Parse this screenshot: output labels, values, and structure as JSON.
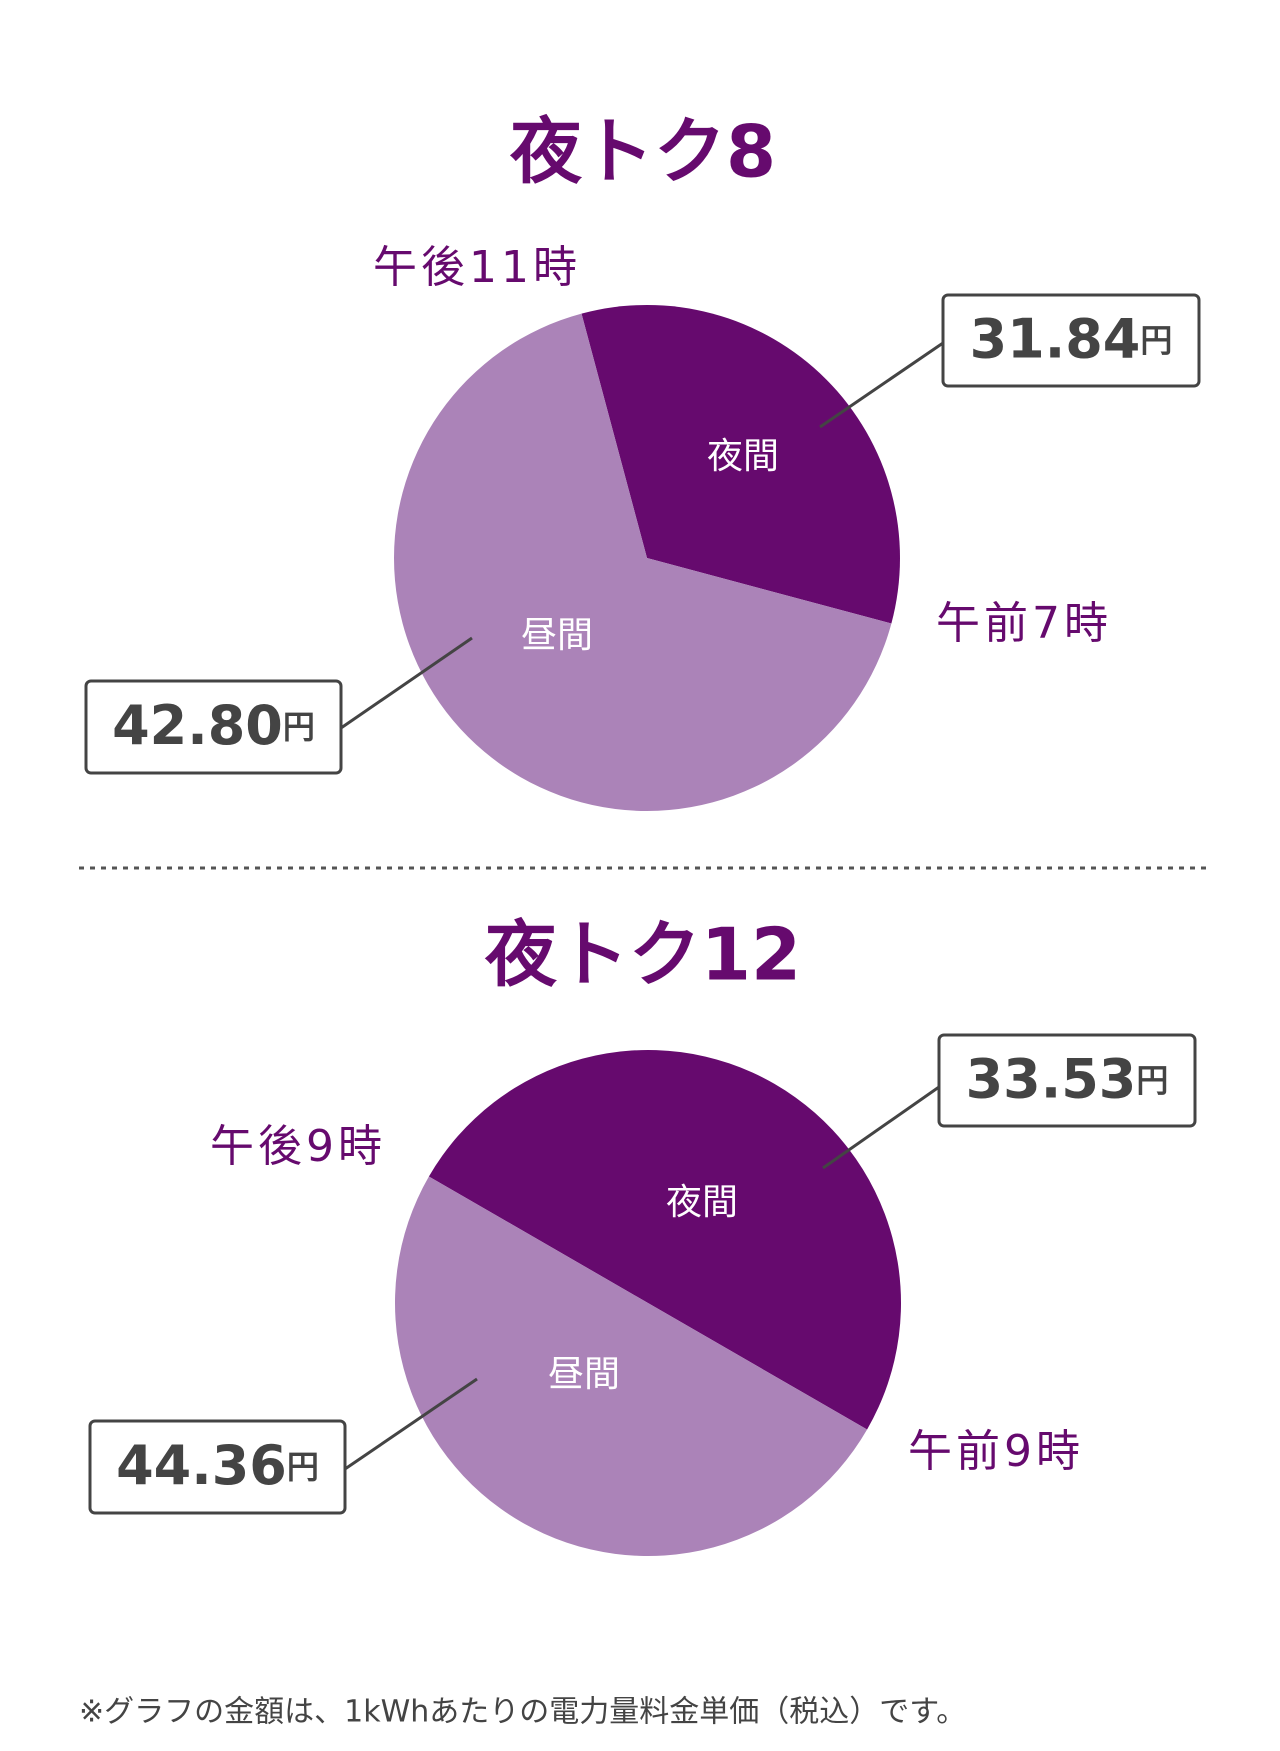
{
  "chart_data": [
    {
      "type": "pie",
      "title": "夜トク8",
      "categories": [
        "夜間",
        "昼間"
      ],
      "values": [
        8,
        16
      ],
      "colors": [
        "#660a6e",
        "#ab83b8"
      ],
      "start_angle": -15,
      "boundary_labels": [
        "午後11時",
        "午前7時"
      ],
      "prices": [
        "31.84",
        "42.80"
      ],
      "price_unit": "円"
    },
    {
      "type": "pie",
      "title": "夜トク12",
      "categories": [
        "夜間",
        "昼間"
      ],
      "values": [
        12,
        12
      ],
      "colors": [
        "#660a6e",
        "#ab83b8"
      ],
      "start_angle": -60,
      "boundary_labels": [
        "午後9時",
        "午前9時"
      ],
      "prices": [
        "33.53",
        "44.36"
      ],
      "price_unit": "円"
    }
  ],
  "footnote": "※グラフの金額は、1kWhあたりの電力量料金単価（税込）です。"
}
